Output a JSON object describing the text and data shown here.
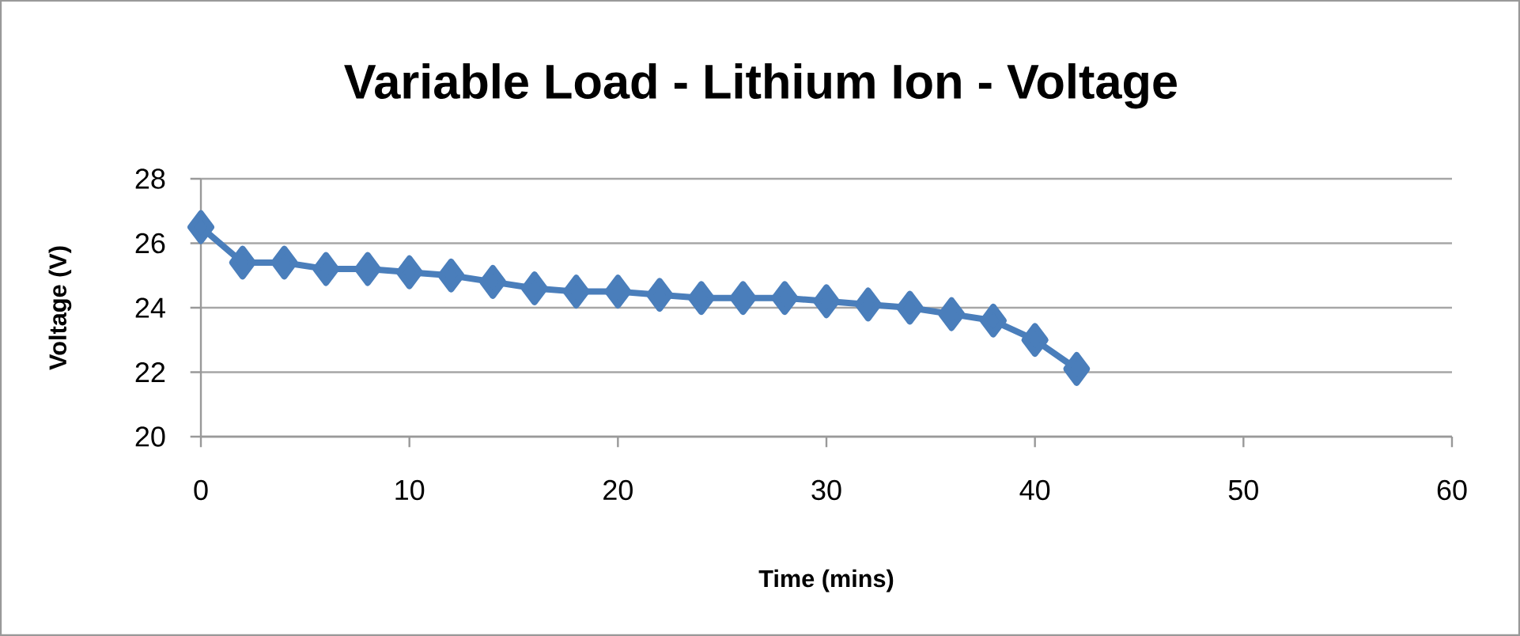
{
  "chart_data": {
    "type": "line",
    "title": "Variable Load - Lithium Ion - Voltage",
    "xlabel": "Time (mins)",
    "ylabel": "Voltage (V)",
    "x": [
      0,
      2,
      4,
      6,
      8,
      10,
      12,
      14,
      16,
      18,
      20,
      22,
      24,
      26,
      28,
      30,
      32,
      34,
      36,
      38,
      40,
      42
    ],
    "series": [
      {
        "color": "#4a7ebb",
        "values": [
          26.5,
          25.4,
          25.4,
          25.2,
          25.2,
          25.1,
          25.0,
          24.8,
          24.6,
          24.5,
          24.5,
          24.4,
          24.3,
          24.3,
          24.3,
          24.2,
          24.1,
          24.0,
          23.8,
          23.6,
          23.0,
          22.1
        ]
      }
    ],
    "xlim": [
      0,
      60
    ],
    "xticks": [
      0,
      10,
      20,
      30,
      40,
      50,
      60
    ],
    "ylim": [
      20,
      28
    ],
    "yticks": [
      20,
      22,
      24,
      26,
      28
    ],
    "grid": "y",
    "marker": "diamond",
    "line_style": "solid"
  }
}
